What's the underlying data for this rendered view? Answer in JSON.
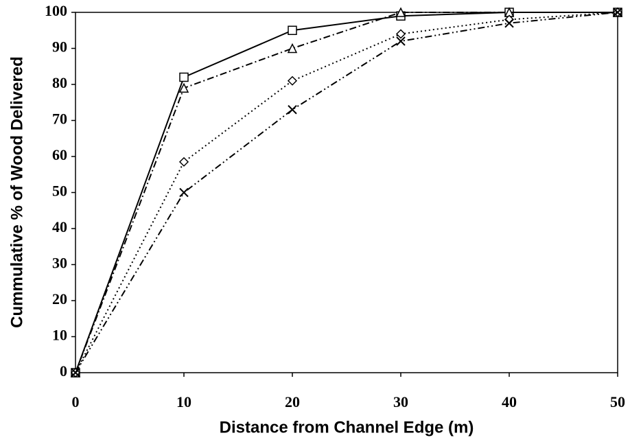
{
  "chart_data": {
    "type": "line",
    "xlabel": "Distance from Channel Edge (m)",
    "ylabel": "Cummulative % of Wood Delivered",
    "x": [
      0,
      10,
      20,
      30,
      40,
      50
    ],
    "xlim": [
      0,
      50
    ],
    "xticks": [
      0,
      10,
      20,
      30,
      40,
      50
    ],
    "ylim": [
      0,
      100
    ],
    "yticks": [
      0,
      10,
      20,
      30,
      40,
      50,
      60,
      70,
      80,
      90,
      100
    ],
    "series": [
      {
        "color": "#000000",
        "dash": "solid",
        "marker": "square",
        "values": [
          0,
          82,
          95,
          99,
          100,
          100
        ]
      },
      {
        "color": "#000000",
        "dash": "dashdot",
        "marker": "triangle",
        "values": [
          0,
          79,
          90,
          100,
          100,
          100
        ]
      },
      {
        "color": "#000000",
        "dash": "dotted",
        "marker": "diamond",
        "values": [
          0,
          58.5,
          81,
          94,
          98,
          100
        ]
      },
      {
        "color": "#000000",
        "dash": "dashdotdot",
        "marker": "x",
        "values": [
          0,
          50,
          73,
          92,
          97,
          100
        ]
      }
    ]
  }
}
